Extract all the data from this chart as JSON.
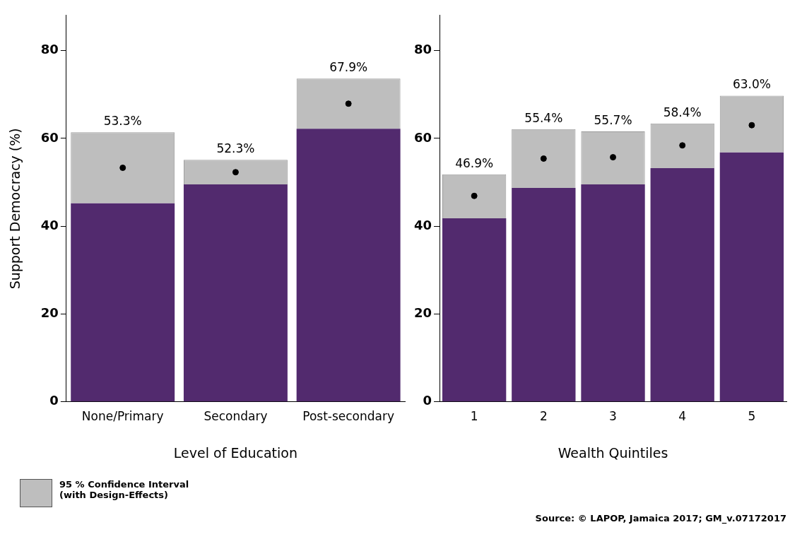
{
  "chart_data": [
    {
      "type": "bar",
      "stacked": true,
      "xlabel": "Level of Education",
      "ylabel": "Support Democracy (%)",
      "categories": [
        "None/Primary",
        "Secondary",
        "Post-secondary"
      ],
      "ylim": [
        0,
        88
      ],
      "yticks": [
        0,
        20,
        40,
        60,
        80
      ],
      "grid": false,
      "legend": "bottom left",
      "marker": "circle",
      "series": [
        {
          "color": "#522a6e",
          "values": [
            45.2,
            49.5,
            62.2
          ]
        },
        {
          "name": "95 % Confidence Interval (with Design-Effects)",
          "color": "#bebebe",
          "values": [
            16.2,
            5.6,
            11.4
          ]
        },
        {
          "type": "scatter",
          "color": "#000000",
          "x": [
            "None/Primary",
            "Secondary",
            "Post-secondary"
          ],
          "values": [
            53.3,
            52.3,
            67.9
          ],
          "value_labels": [
            "53.3%",
            "52.3%",
            "67.9%"
          ]
        }
      ]
    },
    {
      "type": "bar",
      "stacked": true,
      "xlabel": "Wealth Quintiles",
      "categories": [
        "1",
        "2",
        "3",
        "4",
        "5"
      ],
      "ylim": [
        0,
        88
      ],
      "yticks": [
        0,
        20,
        40,
        60,
        80
      ],
      "grid": false,
      "marker": "circle",
      "annotations": [
        "Source: © LAPOP, Jamaica 2017; GM_v.07172017"
      ],
      "series": [
        {
          "color": "#522a6e",
          "values": [
            41.8,
            48.7,
            49.5,
            53.2,
            56.8
          ]
        },
        {
          "color": "#bebebe",
          "values": [
            10.0,
            13.4,
            12.1,
            10.2,
            12.9
          ]
        },
        {
          "type": "scatter",
          "color": "#000000",
          "x": [
            "1",
            "2",
            "3",
            "4",
            "5"
          ],
          "values": [
            46.9,
            55.4,
            55.7,
            58.4,
            63.0
          ],
          "value_labels": [
            "46.9%",
            "55.4%",
            "55.7%",
            "58.4%",
            "63.0%"
          ]
        }
      ]
    }
  ]
}
